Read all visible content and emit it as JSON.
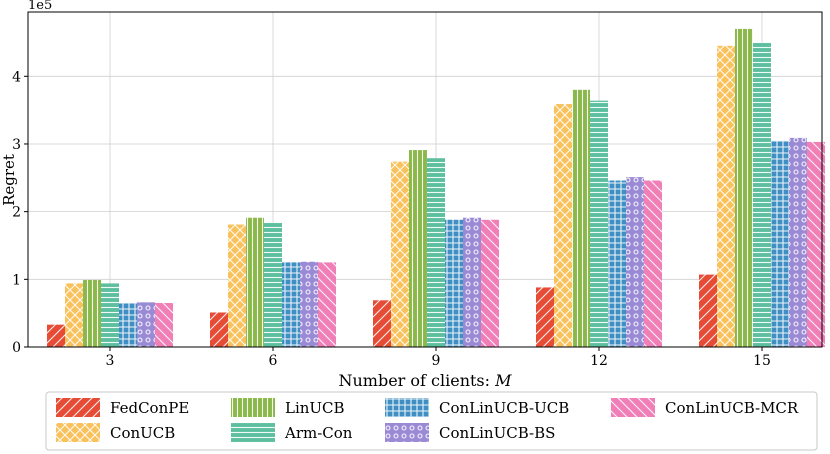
{
  "chart_data": {
    "type": "bar",
    "title": "",
    "xlabel": "Number of clients: M",
    "ylabel": "Regret",
    "y_multiplier_label": "1e5",
    "categories": [
      "3",
      "6",
      "9",
      "12",
      "15"
    ],
    "ylim": [
      0,
      4.95
    ],
    "yticks": [
      0,
      1,
      2,
      3,
      4
    ],
    "grid": true,
    "legend_position": "bottom",
    "series": [
      {
        "name": "FedConPE",
        "color": "#e64b35",
        "pattern": "diag",
        "values": [
          0.33,
          0.51,
          0.69,
          0.88,
          1.07
        ]
      },
      {
        "name": "ConUCB",
        "color": "#f8c15c",
        "pattern": "cross",
        "values": [
          0.94,
          1.81,
          2.74,
          3.59,
          4.45
        ]
      },
      {
        "name": "LinUCB",
        "color": "#8ab84a",
        "pattern": "vline",
        "values": [
          0.99,
          1.91,
          2.91,
          3.8,
          4.7
        ]
      },
      {
        "name": "Arm-Con",
        "color": "#5ebf9f",
        "pattern": "hline",
        "values": [
          0.94,
          1.84,
          2.79,
          3.64,
          4.5
        ]
      },
      {
        "name": "ConLinUCB-UCB",
        "color": "#3f8fc4",
        "pattern": "grid",
        "values": [
          0.65,
          1.25,
          1.88,
          2.46,
          3.05
        ]
      },
      {
        "name": "ConLinUCB-BS",
        "color": "#9a8ad6",
        "pattern": "dots",
        "values": [
          0.66,
          1.26,
          1.91,
          2.51,
          3.09
        ]
      },
      {
        "name": "ConLinUCB-MCR",
        "color": "#f07fb8",
        "pattern": "backdiag",
        "values": [
          0.65,
          1.25,
          1.88,
          2.46,
          3.03
        ]
      }
    ]
  }
}
